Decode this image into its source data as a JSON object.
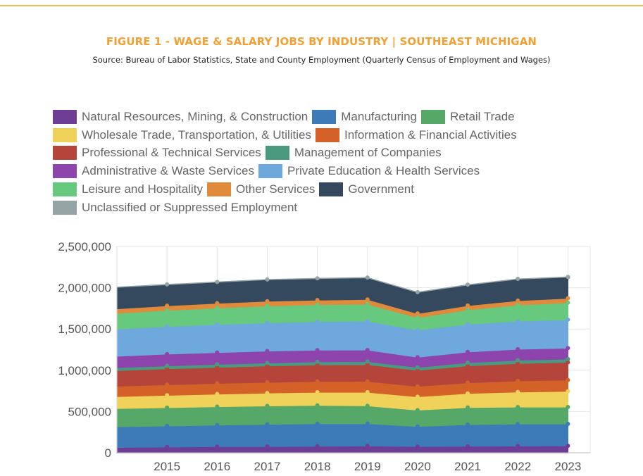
{
  "page": {
    "title": "FIGURE 1 - WAGE & SALARY JOBS BY INDUSTRY | SOUTHEAST MICHIGAN",
    "source": "Source: Bureau of Labor Statistics, State and County Employment (Quarterly Census of Employment and Wages)",
    "accent_color": "#f2a033"
  },
  "chart_data": {
    "type": "area",
    "stacked": true,
    "title": "FIGURE 1 - WAGE & SALARY JOBS BY INDUSTRY | SOUTHEAST MICHIGAN",
    "xlabel": "",
    "ylabel": "",
    "ylim": [
      0,
      2500000
    ],
    "yticks": [
      "0",
      "500,000",
      "1,000,000",
      "1,500,000",
      "2,000,000",
      "2,500,000"
    ],
    "xticks": [
      "2015",
      "2016",
      "2017",
      "2018",
      "2019",
      "2020",
      "2021",
      "2022",
      "2023"
    ],
    "x": [
      2014,
      2015,
      2016,
      2017,
      2018,
      2019,
      2020,
      2021,
      2022,
      2023
    ],
    "grid": true,
    "legend_position": "top",
    "series": [
      {
        "name": "Natural Resources, Mining, & Construction",
        "color": "#6e3d96",
        "values": [
          65000,
          70000,
          74000,
          76000,
          80000,
          83000,
          77000,
          79000,
          82000,
          84000
        ]
      },
      {
        "name": "Manufacturing",
        "color": "#3d7ab8",
        "values": [
          250000,
          255000,
          262000,
          268000,
          272000,
          270000,
          242000,
          262000,
          266000,
          266000
        ]
      },
      {
        "name": "Retail Trade",
        "color": "#55a868",
        "values": [
          222000,
          222000,
          223000,
          224000,
          222000,
          216000,
          198000,
          208000,
          207000,
          205000
        ]
      },
      {
        "name": "Wholesale Trade, Transportation, & Utilities",
        "color": "#f0d159",
        "values": [
          145000,
          150000,
          153000,
          156000,
          160000,
          165000,
          162000,
          170000,
          182000,
          190000
        ]
      },
      {
        "name": "Information & Financial Activities",
        "color": "#d46228",
        "values": [
          125000,
          128000,
          129000,
          130000,
          131000,
          132000,
          126000,
          130000,
          134000,
          136000
        ]
      },
      {
        "name": "Professional & Technical Services",
        "color": "#b5453a",
        "values": [
          190000,
          193000,
          195000,
          198000,
          200000,
          202000,
          194000,
          205000,
          212000,
          215000
        ]
      },
      {
        "name": "Management of Companies",
        "color": "#4a9a80",
        "values": [
          35000,
          36000,
          36000,
          37000,
          37000,
          38000,
          37000,
          38000,
          39000,
          40000
        ]
      },
      {
        "name": "Administrative & Waste Services",
        "color": "#8e44ad",
        "values": [
          138000,
          142000,
          143000,
          144000,
          142000,
          140000,
          122000,
          130000,
          133000,
          132000
        ]
      },
      {
        "name": "Private Education & Health Services",
        "color": "#6fa8dc",
        "values": [
          330000,
          335000,
          340000,
          342000,
          345000,
          350000,
          330000,
          335000,
          340000,
          345000
        ]
      },
      {
        "name": "Leisure and Hospitality",
        "color": "#66c97e",
        "values": [
          190000,
          195000,
          200000,
          205000,
          205000,
          205000,
          150000,
          175000,
          195000,
          205000
        ]
      },
      {
        "name": "Other Services",
        "color": "#e08a3c",
        "values": [
          55000,
          56000,
          57000,
          57000,
          57000,
          57000,
          50000,
          52000,
          54000,
          55000
        ]
      },
      {
        "name": "Government",
        "color": "#34495e",
        "values": [
          260000,
          255000,
          255000,
          260000,
          260000,
          262000,
          255000,
          250000,
          260000,
          255000
        ]
      },
      {
        "name": "Unclassified or Suppressed Employment",
        "color": "#95a5a6",
        "values": [
          3000,
          3000,
          3000,
          3000,
          3000,
          3000,
          3000,
          3000,
          3000,
          3000
        ]
      }
    ]
  }
}
